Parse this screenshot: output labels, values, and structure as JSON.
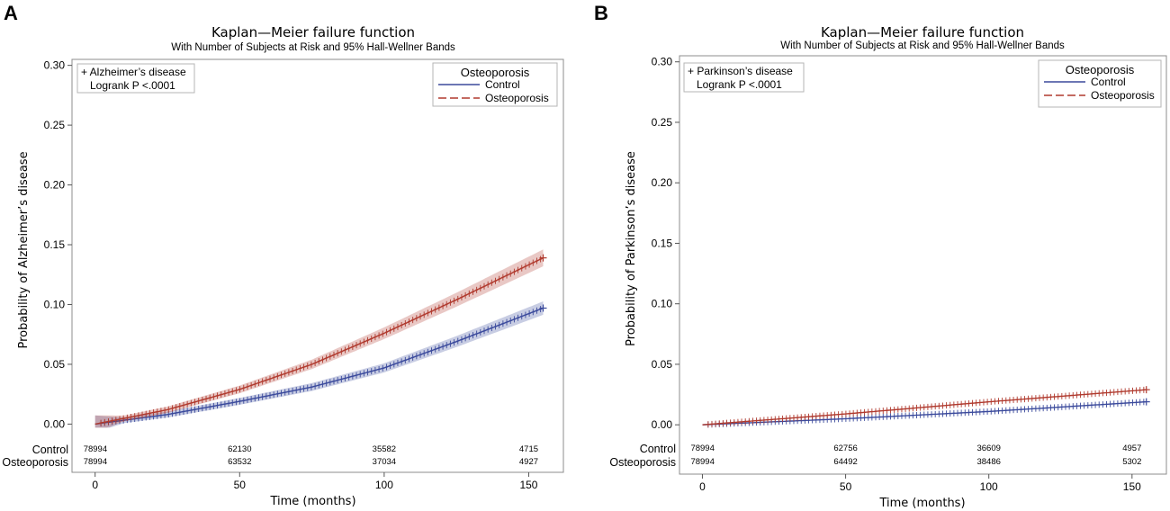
{
  "chart_data": [
    {
      "panel": "A",
      "type": "line",
      "title": "Kaplan—Meier failure function",
      "subtitle": "With Number of Subjects at Risk and 95% Hall-Wellner Bands",
      "xlabel": "Time (months)",
      "ylabel": "Probability of Alzheimer’s disease",
      "xlim": [
        -8,
        162
      ],
      "ylim": [
        -0.014,
        0.305
      ],
      "xticks": [
        0,
        50,
        100,
        150
      ],
      "yticks": [
        "0.00",
        "0.05",
        "0.10",
        "0.15",
        "0.20",
        "0.25",
        "0.30"
      ],
      "inset": {
        "line1": "+ Alzheimer’s disease",
        "line2": "Logrank P <.0001"
      },
      "legend": {
        "title": "Osteoporosis",
        "position": "top-right"
      },
      "series": [
        {
          "name": "Control",
          "color": "#3b4a9c",
          "dash": "solid",
          "x": [
            0,
            25,
            50,
            75,
            100,
            125,
            155
          ],
          "y": [
            0.0,
            0.008,
            0.019,
            0.031,
            0.047,
            0.069,
            0.097
          ]
        },
        {
          "name": "Osteoporosis",
          "color": "#b03a2e",
          "dash": "dashed",
          "x": [
            0,
            25,
            50,
            75,
            100,
            125,
            155
          ],
          "y": [
            0.0,
            0.012,
            0.029,
            0.05,
            0.076,
            0.104,
            0.139
          ]
        }
      ],
      "at_risk": {
        "times": [
          0,
          50,
          100,
          150
        ],
        "rows": [
          {
            "label": "Control",
            "values": [
              "78994",
              "62130",
              "35582",
              "4715"
            ]
          },
          {
            "label": "Osteoporosis",
            "values": [
              "78994",
              "63532",
              "37034",
              "4927"
            ]
          }
        ]
      }
    },
    {
      "panel": "B",
      "type": "line",
      "title": "Kaplan—Meier failure function",
      "subtitle": "With Number of Subjects at Risk and 95% Hall-Wellner Bands",
      "xlabel": "Time (months)",
      "ylabel": "Probability of Parkinson’s disease",
      "xlim": [
        -8,
        162
      ],
      "ylim": [
        -0.014,
        0.305
      ],
      "xticks": [
        0,
        50,
        100,
        150
      ],
      "yticks": [
        "0.00",
        "0.05",
        "0.10",
        "0.15",
        "0.20",
        "0.25",
        "0.30"
      ],
      "inset": {
        "line1": "+ Parkinson’s disease",
        "line2": "Logrank P <.0001"
      },
      "legend": {
        "title": "Osteoporosis",
        "position": "top-right"
      },
      "series": [
        {
          "name": "Control",
          "color": "#3b4a9c",
          "dash": "solid",
          "x": [
            0,
            50,
            100,
            155
          ],
          "y": [
            0.0,
            0.005,
            0.011,
            0.019
          ]
        },
        {
          "name": "Osteoporosis",
          "color": "#b03a2e",
          "dash": "dashed",
          "x": [
            0,
            50,
            100,
            155
          ],
          "y": [
            0.0,
            0.009,
            0.019,
            0.029
          ]
        }
      ],
      "at_risk": {
        "times": [
          0,
          50,
          100,
          150
        ],
        "rows": [
          {
            "label": "Control",
            "values": [
              "78994",
              "62756",
              "36609",
              "4957"
            ]
          },
          {
            "label": "Osteoporosis",
            "values": [
              "78994",
              "64492",
              "38486",
              "5302"
            ]
          }
        ]
      }
    }
  ]
}
